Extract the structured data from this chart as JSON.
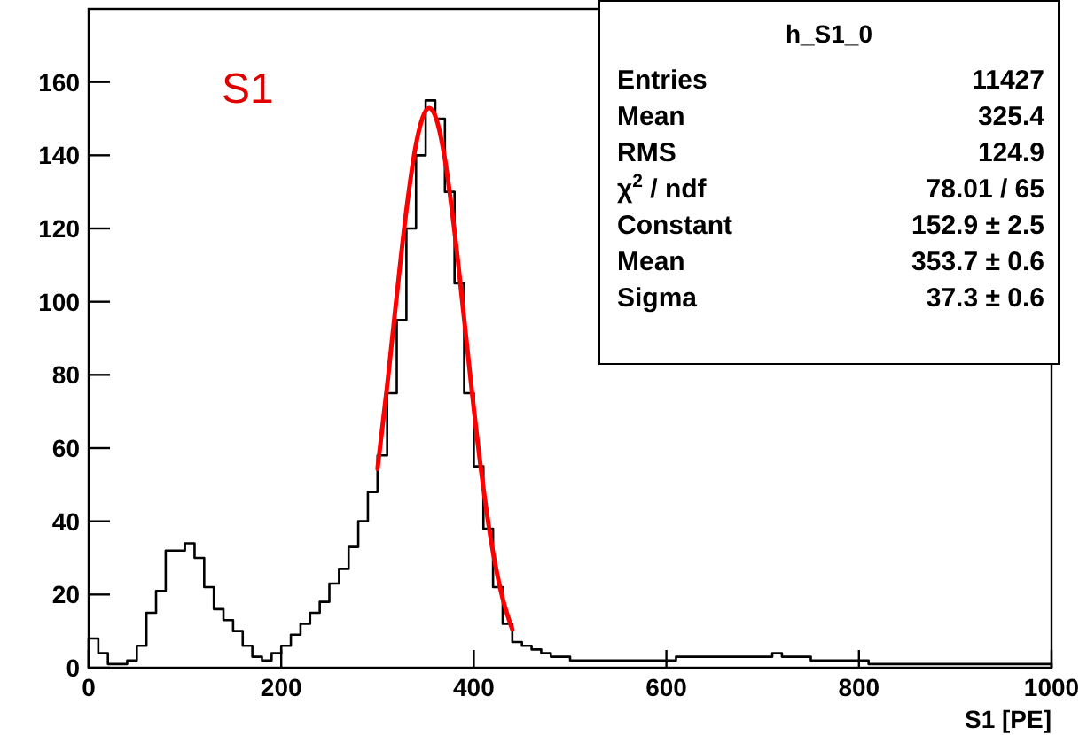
{
  "chart_data": {
    "type": "histogram",
    "xlabel": "S1 [PE]",
    "xlim": [
      0,
      1000
    ],
    "xticks": [
      0,
      200,
      400,
      600,
      800,
      1000
    ],
    "ylim": [
      0,
      180
    ],
    "yticks": [
      0,
      20,
      40,
      60,
      80,
      100,
      120,
      140,
      160
    ],
    "grid": false,
    "bins": [
      0,
      10,
      20,
      30,
      40,
      50,
      60,
      70,
      80,
      90,
      100,
      110,
      120,
      130,
      140,
      150,
      160,
      170,
      180,
      190,
      200,
      210,
      220,
      230,
      240,
      250,
      260,
      270,
      280,
      290,
      300,
      310,
      320,
      330,
      340,
      350,
      360,
      370,
      380,
      390,
      400,
      410,
      420,
      430,
      440,
      450,
      460,
      470,
      480,
      490,
      500,
      510,
      520,
      530,
      540,
      550,
      560,
      570,
      580,
      590,
      600,
      610,
      620,
      630,
      640,
      650,
      660,
      670,
      680,
      690,
      700,
      710,
      720,
      730,
      740,
      750,
      760,
      770,
      780,
      790,
      800,
      810,
      820,
      830,
      840,
      850,
      860,
      870,
      880,
      890,
      900,
      910,
      920,
      930,
      940,
      950,
      960,
      970,
      980,
      990,
      1000
    ],
    "series": [
      {
        "color": "#000000",
        "values": [
          8,
          4,
          1,
          1,
          2,
          6,
          15,
          21,
          32,
          32,
          34,
          30,
          22,
          16,
          13,
          10,
          6,
          3,
          2,
          4,
          6,
          9,
          12,
          15,
          18,
          23,
          27,
          33,
          40,
          48,
          58,
          75,
          95,
          120,
          140,
          155,
          150,
          130,
          105,
          75,
          55,
          38,
          22,
          12,
          7,
          6,
          5,
          4,
          3,
          3,
          2,
          2,
          2,
          2,
          2,
          2,
          2,
          2,
          2,
          2,
          2,
          3,
          3,
          3,
          3,
          3,
          3,
          3,
          3,
          3,
          3,
          4,
          3,
          3,
          3,
          2,
          2,
          2,
          2,
          2,
          2,
          1,
          1,
          1,
          1,
          1,
          1,
          1,
          1,
          1,
          1,
          1,
          1,
          1,
          1,
          1,
          1,
          1,
          1,
          1
        ]
      },
      {
        "type": "line",
        "color": "#ff0000",
        "x": [
          300,
          310,
          320,
          330,
          340,
          353.7,
          360,
          370,
          380,
          390,
          400,
          410,
          420,
          430,
          440
        ],
        "values": [
          54.3,
          76.9,
          101.7,
          125,
          143,
          152.9,
          150.7,
          139,
          119.2,
          95.2,
          70.8,
          49,
          31.5,
          18.9,
          10.5
        ]
      }
    ],
    "annotations": [
      "S1",
      "h_S1_0",
      "Entries",
      "11427",
      "Mean",
      "325.4",
      "RMS",
      "124.9",
      "χ$^{2}$ / ndf",
      "78.01 / 65",
      "Constant",
      "152.9 ± 2.5",
      "Mean",
      "353.7 ± 0.6",
      "Sigma",
      "37.3 ± 0.6"
    ]
  }
}
